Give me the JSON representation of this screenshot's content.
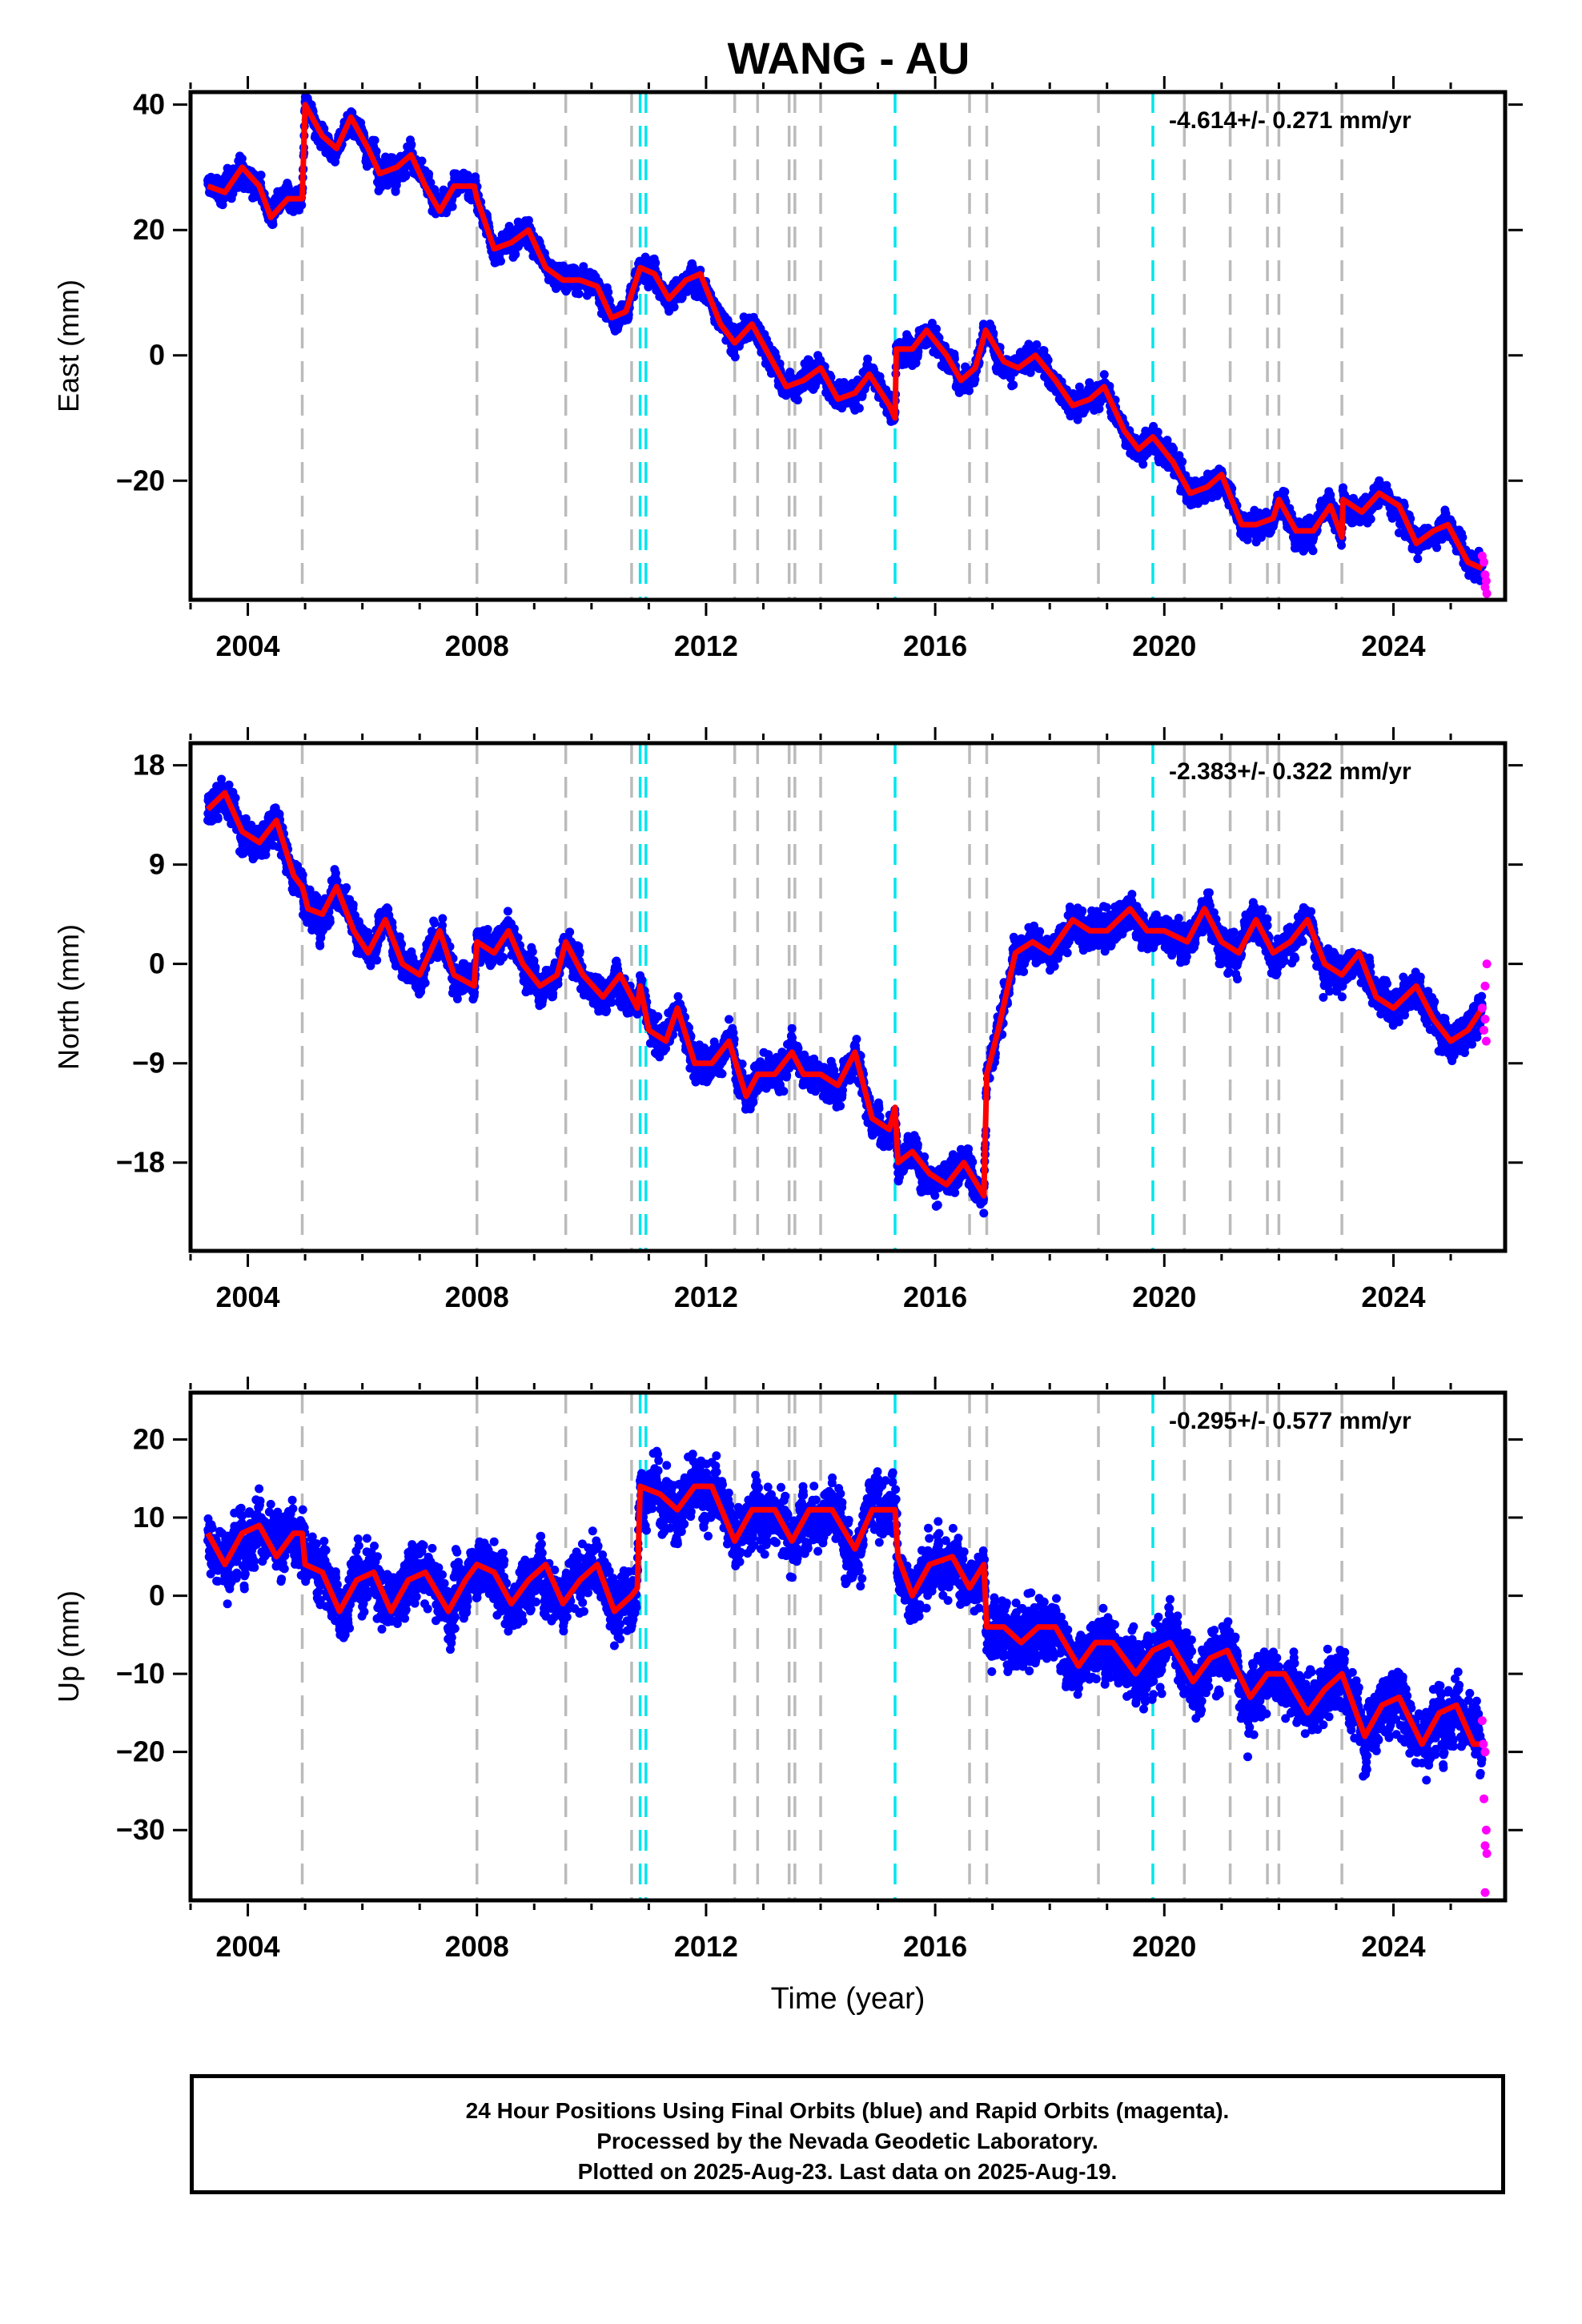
{
  "title": "WANG - AU",
  "footer": {
    "line1": "24 Hour Positions Using Final Orbits (blue) and Rapid Orbits (magenta).",
    "line2": "Processed by the Nevada Geodetic Laboratory.",
    "line3": "Plotted on 2025-Aug-23. Last data on 2025-Aug-19."
  },
  "colors": {
    "final": "#0000ff",
    "rapid": "#ff00ff",
    "model": "#ff0000",
    "gray_event": "#bbbbbb",
    "cyan_event": "#00e5ee"
  },
  "chart_data": [
    {
      "type": "scatter",
      "panel": "east",
      "ylabel": "East (mm)",
      "xlabel": "",
      "rate_label": "-4.614+/- 0.271 mm/yr",
      "xlim": [
        2003.0,
        2025.95
      ],
      "ylim": [
        -39,
        42
      ],
      "xticks": [
        2004,
        2008,
        2012,
        2016,
        2020,
        2024
      ],
      "yticks": [
        40,
        20,
        0,
        -20
      ],
      "ytick_labels": [
        "40",
        "20",
        "0",
        "−20"
      ],
      "model": [
        [
          2003.3,
          27
        ],
        [
          2003.6,
          26
        ],
        [
          2003.9,
          30
        ],
        [
          2004.2,
          27
        ],
        [
          2004.4,
          22
        ],
        [
          2004.7,
          25
        ],
        [
          2004.95,
          25
        ],
        [
          2005.0,
          40
        ],
        [
          2005.3,
          35
        ],
        [
          2005.55,
          33
        ],
        [
          2005.8,
          38
        ],
        [
          2006.1,
          33
        ],
        [
          2006.3,
          29
        ],
        [
          2006.6,
          30
        ],
        [
          2006.85,
          32
        ],
        [
          2007.1,
          27
        ],
        [
          2007.35,
          23
        ],
        [
          2007.6,
          27
        ],
        [
          2007.95,
          27
        ],
        [
          2008.0,
          25
        ],
        [
          2008.3,
          17
        ],
        [
          2008.6,
          18
        ],
        [
          2008.9,
          20
        ],
        [
          2009.2,
          14
        ],
        [
          2009.5,
          12
        ],
        [
          2009.8,
          12
        ],
        [
          2010.1,
          11
        ],
        [
          2010.35,
          6
        ],
        [
          2010.6,
          7
        ],
        [
          2010.85,
          14
        ],
        [
          2011.1,
          13
        ],
        [
          2011.35,
          9
        ],
        [
          2011.65,
          12
        ],
        [
          2011.9,
          13
        ],
        [
          2012.25,
          5
        ],
        [
          2012.5,
          2
        ],
        [
          2012.8,
          5
        ],
        [
          2013.1,
          0
        ],
        [
          2013.4,
          -5
        ],
        [
          2013.7,
          -4
        ],
        [
          2014.0,
          -2
        ],
        [
          2014.3,
          -7
        ],
        [
          2014.6,
          -6
        ],
        [
          2014.85,
          -3
        ],
        [
          2015.2,
          -8
        ],
        [
          2015.3,
          -10
        ],
        [
          2015.32,
          1
        ],
        [
          2015.6,
          1
        ],
        [
          2015.85,
          4
        ],
        [
          2016.2,
          0
        ],
        [
          2016.45,
          -4
        ],
        [
          2016.7,
          -2
        ],
        [
          2016.88,
          4
        ],
        [
          2017.2,
          -1
        ],
        [
          2017.45,
          -2
        ],
        [
          2017.75,
          0
        ],
        [
          2018.1,
          -4
        ],
        [
          2018.4,
          -8
        ],
        [
          2018.7,
          -7
        ],
        [
          2018.95,
          -5
        ],
        [
          2019.3,
          -12
        ],
        [
          2019.55,
          -15
        ],
        [
          2019.8,
          -13
        ],
        [
          2020.15,
          -17
        ],
        [
          2020.45,
          -22
        ],
        [
          2020.75,
          -21
        ],
        [
          2021.0,
          -19
        ],
        [
          2021.35,
          -27
        ],
        [
          2021.6,
          -27
        ],
        [
          2021.9,
          -26
        ],
        [
          2022.0,
          -23
        ],
        [
          2022.3,
          -28
        ],
        [
          2022.6,
          -28
        ],
        [
          2022.9,
          -24
        ],
        [
          2023.1,
          -29
        ],
        [
          2023.12,
          -23
        ],
        [
          2023.45,
          -25
        ],
        [
          2023.75,
          -22
        ],
        [
          2024.1,
          -24
        ],
        [
          2024.4,
          -30
        ],
        [
          2024.7,
          -28
        ],
        [
          2024.95,
          -27
        ],
        [
          2025.3,
          -33
        ],
        [
          2025.55,
          -34
        ]
      ],
      "noise": 2.2,
      "rapid": [
        [
          2025.55,
          -32
        ],
        [
          2025.58,
          -33
        ],
        [
          2025.6,
          -35
        ],
        [
          2025.62,
          -36
        ],
        [
          2025.6,
          -37
        ],
        [
          2025.63,
          -38
        ]
      ],
      "gray_events": [
        2004.95,
        2008.0,
        2009.55,
        2010.7,
        2012.5,
        2012.9,
        2013.45,
        2013.55,
        2014.0,
        2016.6,
        2016.9,
        2018.85,
        2020.35,
        2021.15,
        2021.8,
        2022.0,
        2023.1
      ],
      "cyan_events": [
        2010.85,
        2010.95,
        2015.3,
        2019.8
      ]
    },
    {
      "type": "scatter",
      "panel": "north",
      "ylabel": "North (mm)",
      "xlabel": "",
      "rate_label": "-2.383+/- 0.322 mm/yr",
      "xlim": [
        2003.0,
        2025.95
      ],
      "ylim": [
        -26,
        20
      ],
      "xticks": [
        2004,
        2008,
        2012,
        2016,
        2020,
        2024
      ],
      "yticks": [
        18,
        9,
        0,
        -9,
        -18
      ],
      "ytick_labels": [
        "18",
        "9",
        "0",
        "−9",
        "−18"
      ],
      "model": [
        [
          2003.3,
          14
        ],
        [
          2003.6,
          15.5
        ],
        [
          2003.9,
          12
        ],
        [
          2004.2,
          11
        ],
        [
          2004.5,
          13
        ],
        [
          2004.8,
          8
        ],
        [
          2004.95,
          7
        ],
        [
          2005.05,
          5
        ],
        [
          2005.3,
          4.5
        ],
        [
          2005.55,
          7
        ],
        [
          2005.85,
          3
        ],
        [
          2006.1,
          1
        ],
        [
          2006.4,
          4
        ],
        [
          2006.7,
          0
        ],
        [
          2007.0,
          -1
        ],
        [
          2007.35,
          3
        ],
        [
          2007.6,
          -1
        ],
        [
          2007.95,
          -2
        ],
        [
          2008.0,
          2
        ],
        [
          2008.3,
          1
        ],
        [
          2008.55,
          3
        ],
        [
          2008.8,
          0
        ],
        [
          2009.1,
          -2
        ],
        [
          2009.4,
          -1
        ],
        [
          2009.55,
          2
        ],
        [
          2009.85,
          -1
        ],
        [
          2010.2,
          -3
        ],
        [
          2010.5,
          -1
        ],
        [
          2010.8,
          -4
        ],
        [
          2010.85,
          -2
        ],
        [
          2011.0,
          -6
        ],
        [
          2011.3,
          -7
        ],
        [
          2011.5,
          -4
        ],
        [
          2011.8,
          -9
        ],
        [
          2012.1,
          -9
        ],
        [
          2012.4,
          -7
        ],
        [
          2012.7,
          -12
        ],
        [
          2012.9,
          -10
        ],
        [
          2013.2,
          -10
        ],
        [
          2013.5,
          -8
        ],
        [
          2013.7,
          -10
        ],
        [
          2014.0,
          -10
        ],
        [
          2014.3,
          -11
        ],
        [
          2014.6,
          -8
        ],
        [
          2014.9,
          -14
        ],
        [
          2015.2,
          -15
        ],
        [
          2015.3,
          -13
        ],
        [
          2015.35,
          -18
        ],
        [
          2015.6,
          -17
        ],
        [
          2015.9,
          -19
        ],
        [
          2016.2,
          -20
        ],
        [
          2016.5,
          -18
        ],
        [
          2016.85,
          -21
        ],
        [
          2016.9,
          -10
        ],
        [
          2017.1,
          -6
        ],
        [
          2017.4,
          1
        ],
        [
          2017.7,
          2
        ],
        [
          2018.0,
          1
        ],
        [
          2018.4,
          4
        ],
        [
          2018.7,
          3
        ],
        [
          2019.0,
          3
        ],
        [
          2019.4,
          5
        ],
        [
          2019.7,
          3
        ],
        [
          2020.0,
          3
        ],
        [
          2020.4,
          2
        ],
        [
          2020.7,
          5
        ],
        [
          2021.0,
          2
        ],
        [
          2021.3,
          1
        ],
        [
          2021.6,
          4
        ],
        [
          2021.9,
          1
        ],
        [
          2022.2,
          2
        ],
        [
          2022.5,
          4
        ],
        [
          2022.8,
          0
        ],
        [
          2023.1,
          -1
        ],
        [
          2023.4,
          1
        ],
        [
          2023.7,
          -3
        ],
        [
          2024.0,
          -4
        ],
        [
          2024.4,
          -2
        ],
        [
          2024.7,
          -5
        ],
        [
          2025.0,
          -7
        ],
        [
          2025.3,
          -6
        ],
        [
          2025.55,
          -4
        ]
      ],
      "noise": 1.7,
      "rapid": [
        [
          2025.55,
          -4
        ],
        [
          2025.58,
          -6
        ],
        [
          2025.6,
          -5
        ],
        [
          2025.62,
          -7
        ],
        [
          2025.6,
          -2
        ],
        [
          2025.63,
          0
        ]
      ],
      "gray_events": [
        2004.95,
        2008.0,
        2009.55,
        2010.7,
        2012.5,
        2012.9,
        2013.45,
        2013.55,
        2014.0,
        2016.6,
        2016.9,
        2018.85,
        2020.35,
        2021.15,
        2021.8,
        2022.0,
        2023.1
      ],
      "cyan_events": [
        2010.85,
        2010.95,
        2015.3,
        2019.8
      ]
    },
    {
      "type": "scatter",
      "panel": "up",
      "ylabel": "Up (mm)",
      "xlabel": "Time (year)",
      "rate_label": "-0.295+/- 0.577 mm/yr",
      "xlim": [
        2003.0,
        2025.95
      ],
      "ylim": [
        -39,
        26
      ],
      "xticks": [
        2004,
        2008,
        2012,
        2016,
        2020,
        2024
      ],
      "yticks": [
        20,
        10,
        0,
        -10,
        -20,
        -30
      ],
      "ytick_labels": [
        "20",
        "10",
        "0",
        "−10",
        "−20",
        "−30"
      ],
      "model": [
        [
          2003.3,
          8
        ],
        [
          2003.6,
          4
        ],
        [
          2003.9,
          8
        ],
        [
          2004.2,
          9
        ],
        [
          2004.5,
          5
        ],
        [
          2004.8,
          8
        ],
        [
          2004.95,
          8
        ],
        [
          2005.0,
          4
        ],
        [
          2005.3,
          3
        ],
        [
          2005.6,
          -2
        ],
        [
          2005.9,
          2
        ],
        [
          2006.2,
          3
        ],
        [
          2006.5,
          -2
        ],
        [
          2006.8,
          2
        ],
        [
          2007.1,
          3
        ],
        [
          2007.5,
          -2
        ],
        [
          2007.8,
          2
        ],
        [
          2008.0,
          4
        ],
        [
          2008.3,
          3
        ],
        [
          2008.6,
          -1
        ],
        [
          2008.9,
          2
        ],
        [
          2009.2,
          4
        ],
        [
          2009.5,
          -1
        ],
        [
          2009.8,
          2
        ],
        [
          2010.1,
          4
        ],
        [
          2010.4,
          -2
        ],
        [
          2010.7,
          0
        ],
        [
          2010.8,
          1
        ],
        [
          2010.85,
          14
        ],
        [
          2011.2,
          13
        ],
        [
          2011.5,
          11
        ],
        [
          2011.8,
          14
        ],
        [
          2012.1,
          14
        ],
        [
          2012.5,
          7
        ],
        [
          2012.8,
          11
        ],
        [
          2013.2,
          11
        ],
        [
          2013.5,
          7
        ],
        [
          2013.8,
          11
        ],
        [
          2014.2,
          11
        ],
        [
          2014.6,
          6
        ],
        [
          2014.9,
          11
        ],
        [
          2015.3,
          11
        ],
        [
          2015.35,
          5
        ],
        [
          2015.6,
          0
        ],
        [
          2015.9,
          4
        ],
        [
          2016.3,
          5
        ],
        [
          2016.6,
          1
        ],
        [
          2016.85,
          4
        ],
        [
          2016.9,
          -4
        ],
        [
          2017.2,
          -4
        ],
        [
          2017.5,
          -6
        ],
        [
          2017.8,
          -4
        ],
        [
          2018.1,
          -4
        ],
        [
          2018.5,
          -9
        ],
        [
          2018.8,
          -6
        ],
        [
          2019.1,
          -6
        ],
        [
          2019.5,
          -10
        ],
        [
          2019.8,
          -7
        ],
        [
          2020.1,
          -6
        ],
        [
          2020.5,
          -11
        ],
        [
          2020.8,
          -8
        ],
        [
          2021.1,
          -7
        ],
        [
          2021.5,
          -13
        ],
        [
          2021.8,
          -10
        ],
        [
          2022.1,
          -10
        ],
        [
          2022.5,
          -15
        ],
        [
          2022.8,
          -12
        ],
        [
          2023.1,
          -10
        ],
        [
          2023.5,
          -18
        ],
        [
          2023.8,
          -14
        ],
        [
          2024.1,
          -13
        ],
        [
          2024.5,
          -19
        ],
        [
          2024.8,
          -15
        ],
        [
          2025.1,
          -14
        ],
        [
          2025.4,
          -19
        ],
        [
          2025.55,
          -19
        ]
      ],
      "noise": 4.2,
      "rapid": [
        [
          2025.55,
          -16
        ],
        [
          2025.57,
          -19
        ],
        [
          2025.6,
          -20
        ],
        [
          2025.58,
          -26
        ],
        [
          2025.62,
          -30
        ],
        [
          2025.6,
          -32
        ],
        [
          2025.63,
          -33
        ],
        [
          2025.6,
          -38
        ]
      ],
      "gray_events": [
        2004.95,
        2008.0,
        2009.55,
        2010.7,
        2012.5,
        2012.9,
        2013.45,
        2013.55,
        2014.0,
        2016.6,
        2016.9,
        2018.85,
        2020.35,
        2021.15,
        2021.8,
        2022.0,
        2023.1
      ],
      "cyan_events": [
        2010.85,
        2010.95,
        2015.3,
        2019.8
      ]
    }
  ]
}
